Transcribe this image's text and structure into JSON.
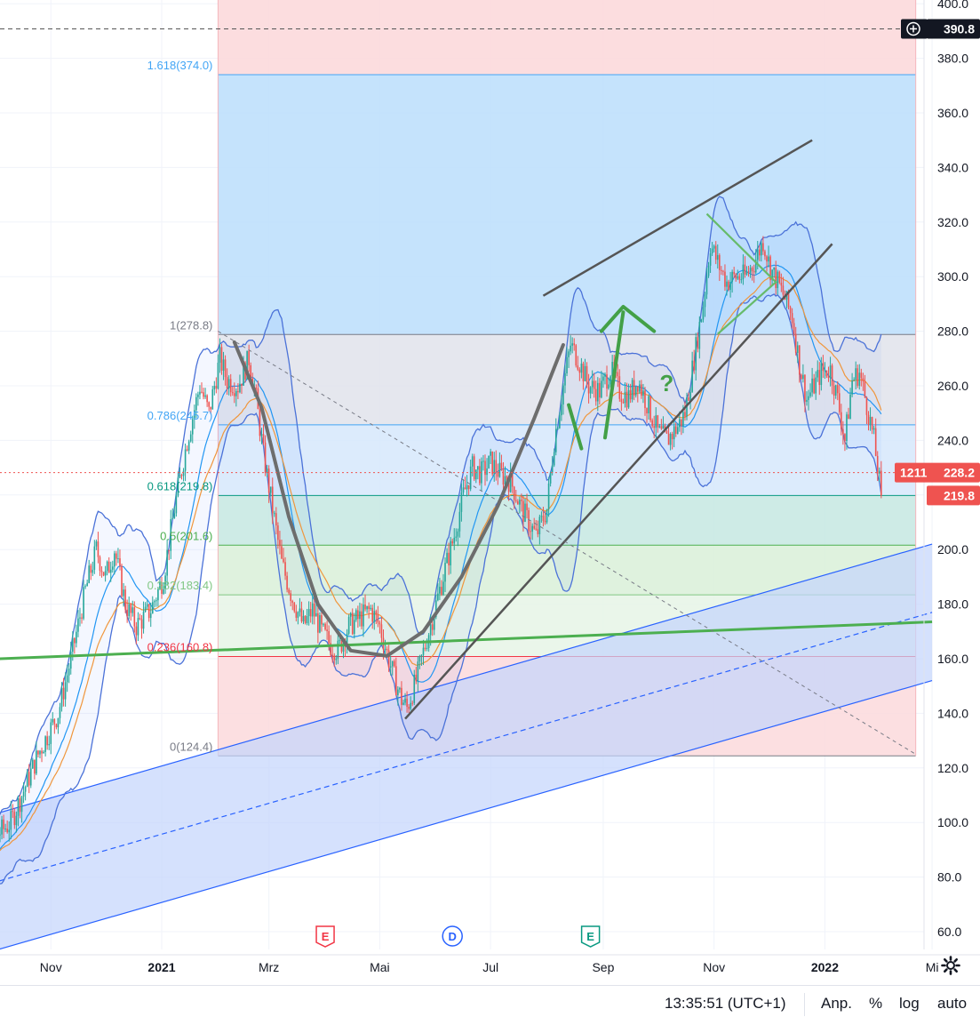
{
  "chart_data": {
    "type": "candlestick",
    "y_axis": {
      "ylim": [
        55,
        402
      ],
      "ticks": [
        "60.0",
        "80.0",
        "100.0",
        "120.0",
        "140.0",
        "160.0",
        "180.0",
        "200.0",
        "220.0",
        "240.0",
        "260.0",
        "280.0",
        "300.0",
        "320.0",
        "340.0",
        "360.0",
        "380.0",
        "400.0"
      ]
    },
    "x_axis": {
      "ticks": [
        {
          "label": "Nov",
          "date": "2020-11-01"
        },
        {
          "label": "2021",
          "date": "2021-01-01",
          "bold": true
        },
        {
          "label": "Mrz",
          "date": "2021-03-01"
        },
        {
          "label": "Mai",
          "date": "2021-05-01"
        },
        {
          "label": "Jul",
          "date": "2021-07-01"
        },
        {
          "label": "Sep",
          "date": "2021-09-01"
        },
        {
          "label": "Nov",
          "date": "2021-11-01"
        },
        {
          "label": "2022",
          "date": "2022-01-01",
          "bold": true
        },
        {
          "label": "Mi",
          "date": "2022-03-01"
        }
      ]
    },
    "price_path": [
      [
        "2020-09-15",
        85
      ],
      [
        "2020-10-10",
        100
      ],
      [
        "2020-10-25",
        125
      ],
      [
        "2020-11-05",
        140
      ],
      [
        "2020-11-12",
        160
      ],
      [
        "2020-11-20",
        185
      ],
      [
        "2020-11-26",
        200
      ],
      [
        "2020-12-01",
        190
      ],
      [
        "2020-12-06",
        200
      ],
      [
        "2020-12-12",
        180
      ],
      [
        "2020-12-18",
        172
      ],
      [
        "2020-12-26",
        178
      ],
      [
        "2021-01-02",
        190
      ],
      [
        "2021-01-08",
        215
      ],
      [
        "2021-01-15",
        240
      ],
      [
        "2021-01-22",
        260
      ],
      [
        "2021-01-27",
        250
      ],
      [
        "2021-02-02",
        270
      ],
      [
        "2021-02-06",
        262
      ],
      [
        "2021-02-12",
        260
      ],
      [
        "2021-02-18",
        270
      ],
      [
        "2021-02-22",
        255
      ],
      [
        "2021-02-26",
        235
      ],
      [
        "2021-03-03",
        215
      ],
      [
        "2021-03-08",
        195
      ],
      [
        "2021-03-14",
        182
      ],
      [
        "2021-03-20",
        172
      ],
      [
        "2021-03-25",
        178
      ],
      [
        "2021-03-30",
        170
      ],
      [
        "2021-04-04",
        165
      ],
      [
        "2021-04-08",
        163
      ],
      [
        "2021-04-14",
        172
      ],
      [
        "2021-04-20",
        175
      ],
      [
        "2021-04-26",
        178
      ],
      [
        "2021-05-01",
        172
      ],
      [
        "2021-05-05",
        162
      ],
      [
        "2021-05-09",
        153
      ],
      [
        "2021-05-13",
        145
      ],
      [
        "2021-05-16",
        142
      ],
      [
        "2021-05-21",
        152
      ],
      [
        "2021-05-26",
        165
      ],
      [
        "2021-06-01",
        180
      ],
      [
        "2021-06-06",
        193
      ],
      [
        "2021-06-11",
        205
      ],
      [
        "2021-06-16",
        220
      ],
      [
        "2021-06-21",
        230
      ],
      [
        "2021-06-26",
        228
      ],
      [
        "2021-07-01",
        232
      ],
      [
        "2021-07-06",
        228
      ],
      [
        "2021-07-12",
        225
      ],
      [
        "2021-07-18",
        215
      ],
      [
        "2021-07-22",
        210
      ],
      [
        "2021-07-26",
        205
      ],
      [
        "2021-08-01",
        215
      ],
      [
        "2021-08-05",
        240
      ],
      [
        "2021-08-10",
        260
      ],
      [
        "2021-08-14",
        275
      ],
      [
        "2021-08-18",
        270
      ],
      [
        "2021-08-24",
        260
      ],
      [
        "2021-08-30",
        258
      ],
      [
        "2021-09-05",
        266
      ],
      [
        "2021-09-10",
        258
      ],
      [
        "2021-09-15",
        256
      ],
      [
        "2021-09-20",
        262
      ],
      [
        "2021-09-26",
        252
      ],
      [
        "2021-10-01",
        243
      ],
      [
        "2021-10-06",
        240
      ],
      [
        "2021-10-12",
        245
      ],
      [
        "2021-10-16",
        250
      ],
      [
        "2021-10-21",
        270
      ],
      [
        "2021-10-26",
        290
      ],
      [
        "2021-10-30",
        312
      ],
      [
        "2021-11-03",
        305
      ],
      [
        "2021-11-08",
        298
      ],
      [
        "2021-11-13",
        300
      ],
      [
        "2021-11-18",
        300
      ],
      [
        "2021-11-23",
        305
      ],
      [
        "2021-11-28",
        313
      ],
      [
        "2021-12-02",
        303
      ],
      [
        "2021-12-06",
        298
      ],
      [
        "2021-12-10",
        292
      ],
      [
        "2021-12-14",
        285
      ],
      [
        "2021-12-18",
        268
      ],
      [
        "2021-12-22",
        255
      ],
      [
        "2021-12-26",
        260
      ],
      [
        "2021-12-30",
        265
      ],
      [
        "2022-01-04",
        266
      ],
      [
        "2022-01-08",
        255
      ],
      [
        "2022-01-12",
        240
      ],
      [
        "2022-01-16",
        262
      ],
      [
        "2022-01-20",
        265
      ],
      [
        "2022-01-25",
        250
      ],
      [
        "2022-01-28",
        240
      ],
      [
        "2022-02-01",
        219.8
      ]
    ],
    "last_price": 219.8,
    "price_tags": [
      {
        "text": "390.8",
        "value": 390.8,
        "color": "#131722"
      },
      {
        "text": "228.2",
        "label": "1211",
        "value": 228.2,
        "color": "#ef5350"
      },
      {
        "text": "219.8",
        "value": 219.8,
        "color": "#ef5350"
      }
    ],
    "fib_retracement": {
      "start_date": "2021-02-01",
      "end_date": "2022-02-20",
      "levels": [
        {
          "label": "1.618(374.0)",
          "value": 374.0,
          "color": "#42a5f5",
          "fill": "#bbdefb"
        },
        {
          "label": "1(278.8)",
          "value": 278.8,
          "color": "#787b86",
          "fill": "#e0e3eb"
        },
        {
          "label": "0.786(245.7)",
          "value": 245.7,
          "color": "#42a5f5",
          "fill": "#d6e8fb"
        },
        {
          "label": "0.618(219.8)",
          "value": 219.8,
          "color": "#089981",
          "fill": "#c6e8e2"
        },
        {
          "label": "0.5(201.6)",
          "value": 201.6,
          "color": "#4caf50",
          "fill": "#d9f0d8"
        },
        {
          "label": "0.382(183.4)",
          "value": 183.4,
          "color": "#81c784",
          "fill": "#e6f4e6"
        },
        {
          "label": "0.236(160.8)",
          "value": 160.8,
          "color": "#f23645",
          "fill": "#fcd9dc"
        },
        {
          "label": "0(124.4)",
          "value": 124.4,
          "color": "#787b86",
          "fill": "#fcd9dc"
        }
      ],
      "top_fill": "#fcd9dc"
    },
    "channel": {
      "start": [
        "2020-09-15",
        75
      ],
      "end": [
        "2022-03-01",
        177
      ],
      "width": 25,
      "color": "#2962ff",
      "fill": "#c3d4fc"
    },
    "support_line": {
      "start": [
        "2020-09-15",
        159.5
      ],
      "end": [
        "2022-03-01",
        173.5
      ],
      "color": "#4caf50"
    },
    "trend_lines": [
      {
        "start": [
          "2021-07-30",
          293
        ],
        "end": [
          "2021-12-25",
          350
        ],
        "color": "#555555"
      },
      {
        "start": [
          "2021-05-15",
          138
        ],
        "end": [
          "2022-01-05",
          312
        ],
        "color": "#555555"
      }
    ],
    "dashed_diagonal": {
      "start": [
        "2021-02-01",
        280
      ],
      "end": [
        "2022-02-20",
        125
      ],
      "color": "#787b86"
    },
    "annotations": {
      "events": [
        {
          "text": "E",
          "date": "2021-04-01",
          "color": "#f23645"
        },
        {
          "text": "D",
          "date": "2021-06-10",
          "color": "#2962ff"
        },
        {
          "text": "E",
          "date": "2021-08-25",
          "color": "#089981"
        }
      ],
      "question_mark": "?"
    },
    "hline_dashed": 390.8,
    "bbands": true,
    "moving_averages": [
      "orange",
      "blue"
    ]
  },
  "bottom_bar": {
    "time": "13:35:51 (UTC+1)",
    "adjust": "Anp.",
    "percent": "%",
    "log": "log",
    "auto": "auto"
  }
}
